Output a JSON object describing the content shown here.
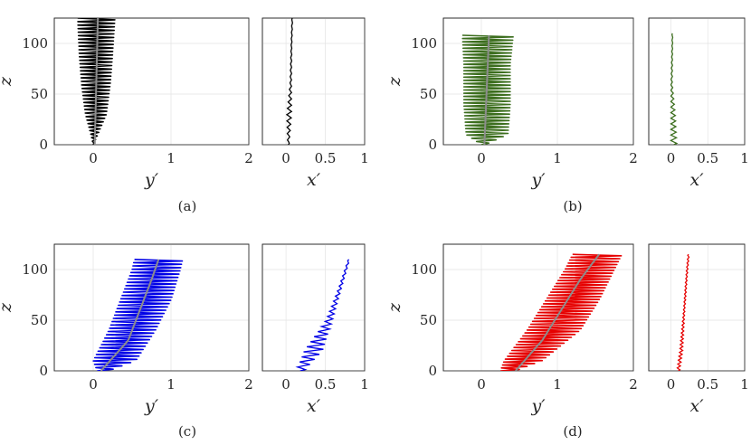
{
  "chart_data": [
    {
      "panel": "a",
      "caption": "(a)",
      "type": "line",
      "color": "#000000",
      "main": {
        "xlabel": "y′",
        "ylabel": "z",
        "xlim": [
          -0.5,
          2
        ],
        "ylim": [
          0,
          125
        ],
        "xticks": [
          0,
          1,
          2
        ],
        "yticks": [
          0,
          50,
          100
        ],
        "xtick_labels": [
          "0",
          "1",
          "2"
        ],
        "ytick_labels": [
          "0",
          "50",
          "100"
        ],
        "grid": true,
        "series": [
          {
            "role": "oscillation envelope",
            "z": [
              0,
              10,
              30,
              60,
              90,
              125
            ],
            "left": [
              0.0,
              -0.03,
              -0.1,
              -0.15,
              -0.18,
              -0.2
            ],
            "right": [
              0.0,
              0.06,
              0.17,
              0.22,
              0.25,
              0.28
            ],
            "cycles": 36
          },
          {
            "role": "mean centerline",
            "z": [
              0,
              125
            ],
            "x": [
              0.02,
              0.06
            ]
          }
        ]
      },
      "side": {
        "xlabel": "x′",
        "xlim": [
          -0.3,
          1
        ],
        "ylim": [
          0,
          125
        ],
        "xticks": [
          0,
          0.5,
          1
        ],
        "xtick_labels": [
          "0",
          "0.5",
          "1"
        ],
        "grid": true,
        "series": [
          {
            "z": [
              0,
              30,
              60,
              100,
              125
            ],
            "x": [
              0.03,
              0.04,
              0.06,
              0.07,
              0.08
            ],
            "amp": [
              0.01,
              0.03,
              0.01,
              0.005,
              0.005
            ],
            "cycles": 20
          }
        ]
      }
    },
    {
      "panel": "b",
      "caption": "(b)",
      "type": "line",
      "color": "#3c6e1e",
      "main": {
        "xlabel": "y′",
        "ylabel": "z",
        "xlim": [
          -0.5,
          2
        ],
        "ylim": [
          0,
          125
        ],
        "xticks": [
          0,
          1,
          2
        ],
        "yticks": [
          0,
          50,
          100
        ],
        "xtick_labels": [
          "0",
          "1",
          "2"
        ],
        "ytick_labels": [
          "0",
          "50",
          "100"
        ],
        "grid": true,
        "series": [
          {
            "role": "oscillation envelope",
            "z": [
              0,
              10,
              40,
              80,
              108
            ],
            "left": [
              0.0,
              -0.2,
              -0.23,
              -0.23,
              -0.25
            ],
            "right": [
              0.05,
              0.35,
              0.38,
              0.38,
              0.42
            ],
            "cycles": 34
          },
          {
            "role": "mean centerline",
            "z": [
              0,
              108
            ],
            "x": [
              0.04,
              0.1
            ]
          }
        ]
      },
      "side": {
        "xlabel": "x′",
        "xlim": [
          -0.3,
          1
        ],
        "ylim": [
          0,
          125
        ],
        "xticks": [
          0,
          0.5,
          1
        ],
        "xtick_labels": [
          "0",
          "0.5",
          "1"
        ],
        "grid": true,
        "series": [
          {
            "z": [
              0,
              30,
              60,
              100,
              110
            ],
            "x": [
              0.04,
              0.03,
              0.01,
              0.02,
              0.02
            ],
            "amp": [
              0.04,
              0.03,
              0.01,
              0.005,
              0.005
            ],
            "cycles": 20
          }
        ]
      }
    },
    {
      "panel": "c",
      "caption": "(c)",
      "type": "line",
      "color": "#0000e6",
      "main": {
        "xlabel": "y′",
        "ylabel": "z",
        "xlim": [
          -0.5,
          2
        ],
        "ylim": [
          0,
          125
        ],
        "xticks": [
          0,
          1,
          2
        ],
        "yticks": [
          0,
          50,
          100
        ],
        "xtick_labels": [
          "0",
          "1",
          "2"
        ],
        "ytick_labels": [
          "0",
          "50",
          "100"
        ],
        "grid": true,
        "series": [
          {
            "role": "oscillation envelope",
            "z": [
              0,
              10,
              40,
              70,
              100,
              110
            ],
            "left": [
              0.05,
              0.0,
              0.2,
              0.35,
              0.5,
              0.53
            ],
            "right": [
              0.2,
              0.55,
              0.8,
              1.0,
              1.12,
              1.15
            ],
            "cycles": 34
          },
          {
            "role": "mean centerline",
            "z": [
              0,
              30,
              60,
              90,
              110
            ],
            "x": [
              0.1,
              0.45,
              0.6,
              0.75,
              0.84
            ]
          }
        ]
      },
      "side": {
        "xlabel": "x′",
        "xlim": [
          -0.3,
          1
        ],
        "ylim": [
          0,
          125
        ],
        "xticks": [
          0,
          0.5,
          1
        ],
        "xtick_labels": [
          "0",
          "0.5",
          "1"
        ],
        "grid": true,
        "series": [
          {
            "z": [
              0,
              20,
              50,
              80,
              110
            ],
            "x": [
              0.18,
              0.35,
              0.55,
              0.68,
              0.8
            ],
            "amp": [
              0.05,
              0.12,
              0.04,
              0.02,
              0.01
            ],
            "cycles": 22
          }
        ]
      }
    },
    {
      "panel": "d",
      "caption": "(d)",
      "type": "line",
      "color": "#e60000",
      "main": {
        "xlabel": "y′",
        "ylabel": "z",
        "xlim": [
          -0.5,
          2
        ],
        "ylim": [
          0,
          125
        ],
        "xticks": [
          0,
          1,
          2
        ],
        "yticks": [
          0,
          50,
          100
        ],
        "xtick_labels": [
          "0",
          "1",
          "2"
        ],
        "ytick_labels": [
          "0",
          "50",
          "100"
        ],
        "grid": true,
        "series": [
          {
            "role": "oscillation envelope",
            "z": [
              0,
              10,
              40,
              70,
              100,
              115
            ],
            "left": [
              0.25,
              0.3,
              0.6,
              0.85,
              1.1,
              1.2
            ],
            "right": [
              0.45,
              0.8,
              1.3,
              1.55,
              1.75,
              1.85
            ],
            "cycles": 40
          },
          {
            "role": "mean centerline",
            "z": [
              0,
              30,
              60,
              90,
              115
            ],
            "x": [
              0.45,
              0.8,
              1.05,
              1.3,
              1.55
            ]
          }
        ]
      },
      "side": {
        "xlabel": "x′",
        "xlim": [
          -0.3,
          1
        ],
        "ylim": [
          0,
          125
        ],
        "xticks": [
          0,
          0.5,
          1
        ],
        "xtick_labels": [
          "0",
          "0.5",
          "1"
        ],
        "grid": true,
        "series": [
          {
            "z": [
              0,
              20,
              60,
              100,
              115
            ],
            "x": [
              0.1,
              0.14,
              0.18,
              0.22,
              0.24
            ],
            "amp": [
              0.02,
              0.02,
              0.01,
              0.01,
              0.01
            ],
            "cycles": 30
          }
        ]
      }
    }
  ]
}
